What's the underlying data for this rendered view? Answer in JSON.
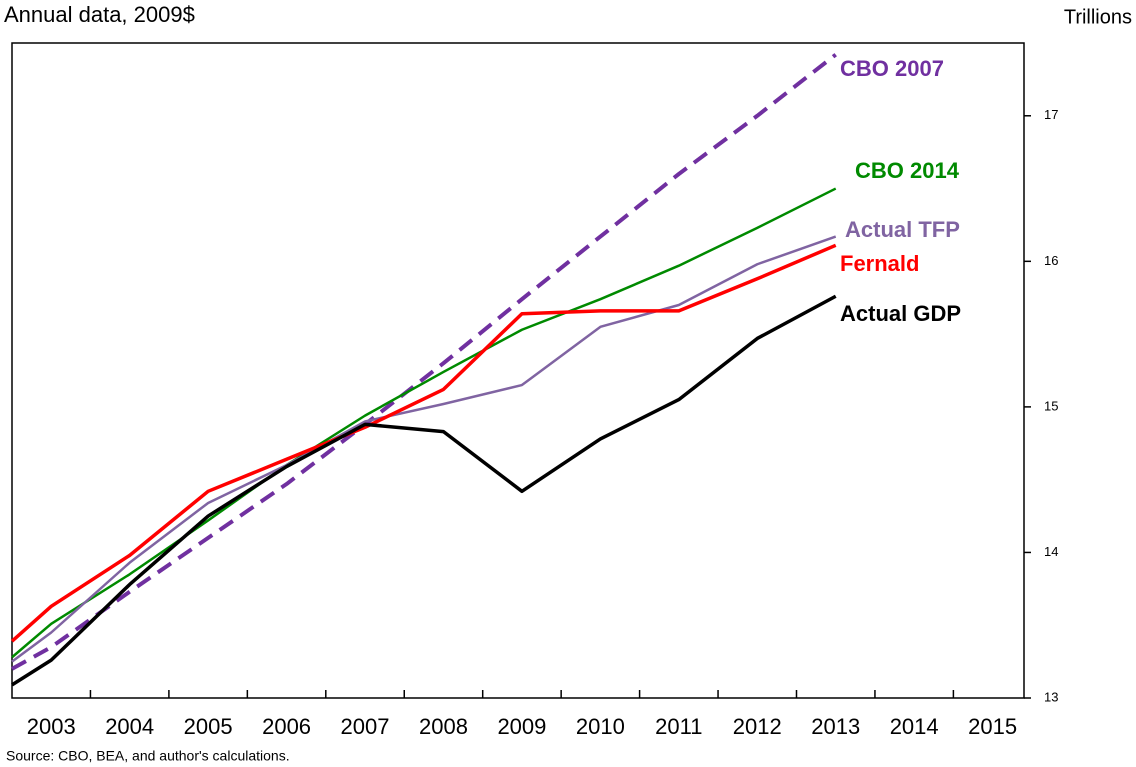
{
  "chart_data": {
    "type": "line",
    "title": "Annual data, 2009$",
    "y_axis_label": "Trillions",
    "source": "Source: CBO, BEA, and author's calculations.",
    "x": [
      2002.5,
      2003,
      2004,
      2005,
      2006,
      2007,
      2008,
      2009,
      2010,
      2011,
      2012,
      2013
    ],
    "xlim": [
      2002.5,
      2015.4
    ],
    "xticks": [
      2003,
      2004,
      2005,
      2006,
      2007,
      2008,
      2009,
      2010,
      2011,
      2012,
      2013,
      2014,
      2015
    ],
    "ylim": [
      13,
      17.5
    ],
    "yticks": [
      13,
      14,
      15,
      16,
      17
    ],
    "series": [
      {
        "name": "CBO 2007",
        "color": "#7030a0",
        "dashed": true,
        "values": [
          13.2,
          13.35,
          13.73,
          14.1,
          14.47,
          14.88,
          15.3,
          15.74,
          16.17,
          16.6,
          17.0,
          17.42
        ]
      },
      {
        "name": "CBO 2014",
        "color": "#008a00",
        "values": [
          13.28,
          13.51,
          13.85,
          14.22,
          14.6,
          14.94,
          15.24,
          15.53,
          15.74,
          15.97,
          16.23,
          16.5
        ]
      },
      {
        "name": "Actual TFP",
        "color": "#8064a2",
        "values": [
          13.25,
          13.45,
          13.93,
          14.34,
          14.6,
          14.9,
          15.02,
          15.15,
          15.55,
          15.7,
          15.98,
          16.17
        ]
      },
      {
        "name": "Fernald",
        "color": "#ff0000",
        "values": [
          13.39,
          13.63,
          13.98,
          14.42,
          14.64,
          14.86,
          15.12,
          15.64,
          15.66,
          15.66,
          15.88,
          16.11
        ]
      },
      {
        "name": "Actual GDP",
        "color": "#000000",
        "values": [
          13.09,
          13.26,
          13.78,
          14.25,
          14.59,
          14.88,
          14.83,
          14.42,
          14.78,
          15.05,
          15.47,
          15.76
        ]
      }
    ]
  }
}
